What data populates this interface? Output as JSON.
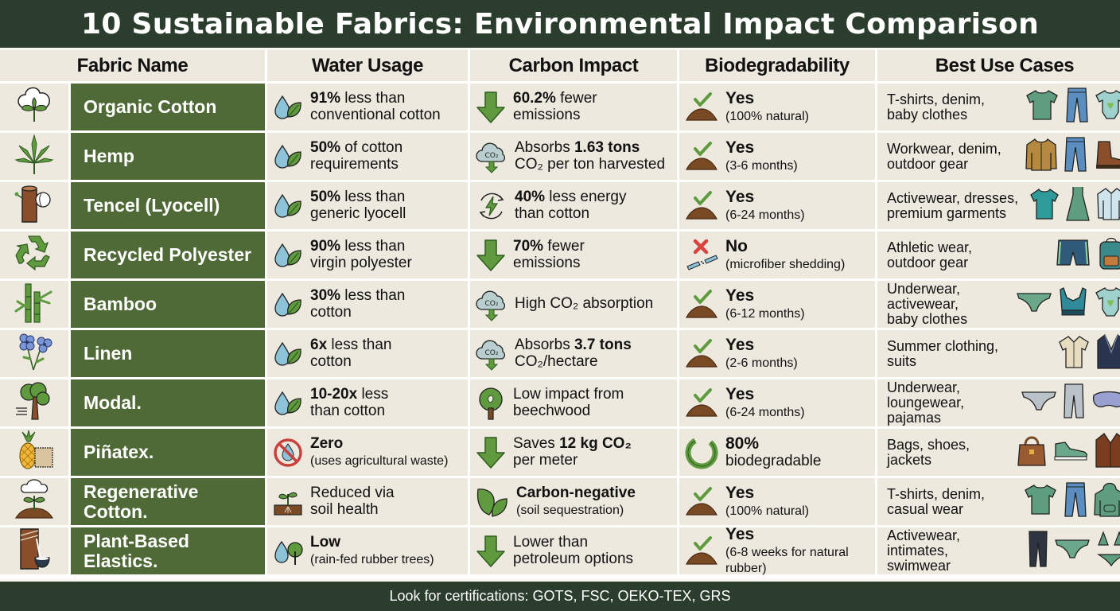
{
  "title": "10 Sustainable Fabrics: Environmental Impact Comparison",
  "headers": {
    "fabric": "Fabric Name",
    "water": "Water Usage",
    "carbon": "Carbon Impact",
    "bio": "Biodegradability",
    "uses": "Best Use Cases"
  },
  "colors": {
    "header_bar": "#2b3d2c",
    "name_cell": "#4f6a37",
    "cell_bg": "#ede9df",
    "accent_green": "#5f9a3f",
    "water_blue": "#8cc3d8",
    "soil_brown": "#7a4a25",
    "no_red": "#d9443f"
  },
  "rows": [
    {
      "icon": "cotton-boll-icon",
      "name": "Organic Cotton",
      "water": {
        "icon": "water-drop-leaf-icon",
        "bold": "91%",
        "rest": " less than",
        "line2": "conventional cotton"
      },
      "carbon": {
        "icon": "arrow-down-icon",
        "pre": "",
        "bold": "60.2%",
        "rest": " fewer",
        "line2": "emissions"
      },
      "bio": {
        "icon": "check-soil-icon",
        "status": "Yes",
        "detail": "(100% natural)"
      },
      "uses": {
        "text1": "T-shirts, denim,",
        "text2": "baby clothes",
        "text3": "",
        "items": [
          "t-shirt-icon",
          "jeans-icon",
          "baby-onesie-icon"
        ]
      }
    },
    {
      "icon": "hemp-leaf-icon",
      "name": "Hemp",
      "water": {
        "icon": "water-drop-leaf-icon",
        "bold": "50%",
        "rest": " of cotton",
        "line2": "requirements"
      },
      "carbon": {
        "icon": "co2-cloud-icon",
        "pre": "Absorbs ",
        "bold": "1.63 tons",
        "rest": "",
        "line2": "CO₂ per ton harvested"
      },
      "bio": {
        "icon": "check-soil-icon",
        "status": "Yes",
        "detail": "(3-6 months)"
      },
      "uses": {
        "text1": "Workwear, denim,",
        "text2": "outdoor gear",
        "text3": "",
        "items": [
          "jacket-icon",
          "jeans-icon",
          "boot-icon"
        ]
      }
    },
    {
      "icon": "tree-trunk-icon",
      "name": "Tencel (Lyocell)",
      "water": {
        "icon": "water-drop-leaf-icon",
        "bold": "50%",
        "rest": " less than",
        "line2": "generic lyocell"
      },
      "carbon": {
        "icon": "energy-cycle-icon",
        "pre": "",
        "bold": "40%",
        "rest": " less energy",
        "line2": "than cotton"
      },
      "bio": {
        "icon": "check-soil-icon",
        "status": "Yes",
        "detail": "(6-24 months)"
      },
      "uses": {
        "text1": "Activewear, dresses,",
        "text2": "premium garments",
        "text3": "",
        "items": [
          "athletic-top-icon",
          "dress-icon",
          "blouse-icon"
        ]
      }
    },
    {
      "icon": "recycle-icon",
      "name": "Recycled Polyester",
      "water": {
        "icon": "water-drop-leaf-icon",
        "bold": "90%",
        "rest": " less than",
        "line2": "virgin polyester"
      },
      "carbon": {
        "icon": "arrow-down-icon",
        "pre": "",
        "bold": "70%",
        "rest": " fewer",
        "line2": "emissions"
      },
      "bio": {
        "icon": "x-microfiber-icon",
        "status": "No",
        "detail": "(microfiber shedding)"
      },
      "uses": {
        "text1": "Athletic wear,",
        "text2": "outdoor gear",
        "text3": "",
        "items": [
          "shorts-icon",
          "backpack-icon"
        ]
      }
    },
    {
      "icon": "bamboo-icon",
      "name": "Bamboo",
      "water": {
        "icon": "water-drop-leaf-icon",
        "bold": "30%",
        "rest": " less than",
        "line2": "cotton"
      },
      "carbon": {
        "icon": "co2-cloud-icon",
        "pre": "High CO₂ absorption",
        "bold": "",
        "rest": "",
        "line2": ""
      },
      "bio": {
        "icon": "check-soil-icon",
        "status": "Yes",
        "detail": "(6-12 months)"
      },
      "uses": {
        "text1": "Underwear,",
        "text2": "activewear,",
        "text3": "baby clothes",
        "items": [
          "briefs-icon",
          "sports-bra-icon",
          "baby-onesie-icon"
        ]
      }
    },
    {
      "icon": "flax-flower-icon",
      "name": "Linen",
      "water": {
        "icon": "water-drop-leaf-icon",
        "bold": "6x",
        "rest": " less than",
        "line2": "cotton"
      },
      "carbon": {
        "icon": "co2-cloud-icon",
        "pre": "Absorbs ",
        "bold": "3.7 tons",
        "rest": "",
        "line2": "CO₂/hectare"
      },
      "bio": {
        "icon": "check-soil-icon",
        "status": "Yes",
        "detail": "(2-6 months)"
      },
      "uses": {
        "text1": "Summer clothing,",
        "text2": "suits",
        "text3": "",
        "items": [
          "camp-shirt-icon",
          "suit-jacket-icon"
        ]
      }
    },
    {
      "icon": "beech-tree-icon",
      "name": "Modal.",
      "water": {
        "icon": "water-drop-leaf-icon",
        "bold": "10-20x",
        "rest": " less",
        "line2": "than cotton"
      },
      "carbon": {
        "icon": "tree-icon",
        "pre": "Low impact from",
        "bold": "",
        "rest": "",
        "line2": "beechwood"
      },
      "bio": {
        "icon": "check-soil-icon",
        "status": "Yes",
        "detail": "(6-24 months)"
      },
      "uses": {
        "text1": "Underwear,",
        "text2": "loungewear,",
        "text3": "pajamas",
        "items": [
          "briefs-icon",
          "joggers-icon",
          "sleep-mask-icon"
        ]
      }
    },
    {
      "icon": "pineapple-icon",
      "name": "Piñatex.",
      "water": {
        "icon": "no-water-icon",
        "bold": "Zero",
        "rest": "",
        "line2": "(uses agricultural waste)"
      },
      "carbon": {
        "icon": "arrow-down-icon",
        "pre": "Saves ",
        "bold": "12 kg CO₂",
        "rest": "",
        "line2": "per meter"
      },
      "bio": {
        "icon": "partial-circle-icon",
        "status": "80%",
        "detail": "biodegradable"
      },
      "uses": {
        "text1": "Bags, shoes,",
        "text2": "jackets",
        "text3": "",
        "items": [
          "handbag-icon",
          "sneaker-icon",
          "leather-jacket-icon"
        ]
      }
    },
    {
      "icon": "cotton-sprout-icon",
      "name": "Regenerative Cotton.",
      "water": {
        "icon": "sprout-soil-icon",
        "bold": "",
        "rest": "Reduced via",
        "line2": "soil health"
      },
      "carbon": {
        "icon": "leaves-icon",
        "pre": "",
        "bold": "Carbon-negative",
        "rest": "",
        "line2": "(soil sequestration)"
      },
      "bio": {
        "icon": "check-soil-icon",
        "status": "Yes",
        "detail": "(100% natural)"
      },
      "uses": {
        "text1": "T-shirts, denim,",
        "text2": "casual wear",
        "text3": "",
        "items": [
          "t-shirt-icon",
          "jeans-icon",
          "hoodie-icon"
        ]
      }
    },
    {
      "icon": "rubber-tree-icon",
      "name": "Plant-Based Elastics.",
      "water": {
        "icon": "water-drop-tree-icon",
        "bold": "Low",
        "rest": "",
        "line2": "(rain-fed rubber trees)"
      },
      "carbon": {
        "icon": "arrow-down-icon",
        "pre": "Lower than",
        "bold": "",
        "rest": "",
        "line2": "petroleum options"
      },
      "bio": {
        "icon": "check-soil-icon",
        "status": "Yes",
        "detail": "(6-8 weeks for natural rubber)"
      },
      "uses": {
        "text1": "Activewear,",
        "text2": "intimates,",
        "text3": "swimwear",
        "items": [
          "leggings-icon",
          "briefs-icon",
          "bikini-icon"
        ]
      }
    }
  ],
  "footer": "Look for certifications: GOTS, FSC, OEKO-TEX, GRS"
}
